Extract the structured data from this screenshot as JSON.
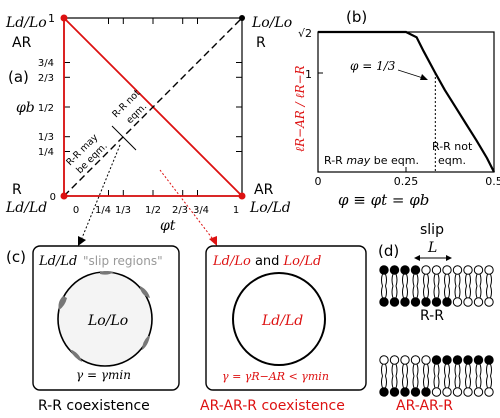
{
  "colors": {
    "red": "#dd1111",
    "black": "#000000",
    "gray": "#888888"
  },
  "panel_a": {
    "tag": "(a)",
    "corner_tl_math": "Ld/Lo",
    "corner_tl_label": "AR",
    "corner_tr_math": "Lo/Lo",
    "corner_tr_label": "R",
    "corner_bl_label": "R",
    "corner_bl_math": "Ld/Ld",
    "corner_br_label": "AR",
    "corner_br_math": "Lo/Ld",
    "y_label": "φb",
    "x_label": "φt",
    "y_ticks": [
      "3/4",
      "2/3",
      "1/2",
      "1/3",
      "1/4",
      "0"
    ],
    "x_ticks": [
      "0",
      "1/4",
      "1/3",
      "1/2",
      "2/3",
      "3/4",
      "1"
    ],
    "one_label": "1",
    "may_line1": "R-R may",
    "may_line2": "be eqm.",
    "not_line1": "R-R not",
    "not_line2": "eqm."
  },
  "panel_b": {
    "tag": "(b)",
    "y_axis_title": "ℓR−AR / ℓR−R",
    "y_ticks": [
      "√2",
      "1"
    ],
    "x_ticks": [
      "0",
      "0.25",
      "0.5"
    ],
    "annotation": "φ = 1/3",
    "region_left_1": "R-R",
    "region_left_2": "may",
    "region_left_3": "be eqm.",
    "region_right_1": "R-R not",
    "region_right_2": "eqm.",
    "x_axis_title": "φ ≡ φt = φb"
  },
  "panel_c": {
    "tag": "(c)",
    "left_corner": "Ld/Ld",
    "left_slip": "\"slip regions\"",
    "left_inner": "Lo/Lo",
    "left_gamma": "γ = γmin",
    "left_caption": "R-R coexistence",
    "right_top_a": "Ld/Lo",
    "right_top_and": "and",
    "right_top_b": "Lo/Ld",
    "right_inner": "Ld/Ld",
    "right_gamma": "γ = γR−AR < γmin",
    "right_caption": "AR-AR-R coexistence"
  },
  "panel_d": {
    "tag": "(d)",
    "slip": "slip",
    "L": "L",
    "rr_label": "R-R",
    "arar_label": "AR-AR-R"
  },
  "chart_data": {
    "type": "line",
    "title": "",
    "xlabel": "φ ≡ φt = φb",
    "ylabel": "ℓR−AR / ℓR−R",
    "xlim": [
      0,
      0.5
    ],
    "ylim": [
      0,
      1.414
    ],
    "x_ticks": [
      0,
      0.25,
      0.5
    ],
    "y_ticks": [
      1,
      1.414
    ],
    "grid": false,
    "series": [
      {
        "x": [
          0,
          0.05,
          0.1,
          0.15,
          0.2,
          0.25,
          0.28,
          0.3,
          0.3333,
          0.36,
          0.39,
          0.42,
          0.45,
          0.48,
          0.5
        ],
        "y": [
          1.414,
          1.414,
          1.414,
          1.414,
          1.414,
          1.414,
          1.36,
          1.22,
          1.0,
          0.83,
          0.66,
          0.49,
          0.32,
          0.14,
          0.0
        ]
      }
    ],
    "annotations": [
      {
        "x": 0.3333,
        "y": 1.0,
        "text": "φ = 1/3"
      }
    ]
  }
}
